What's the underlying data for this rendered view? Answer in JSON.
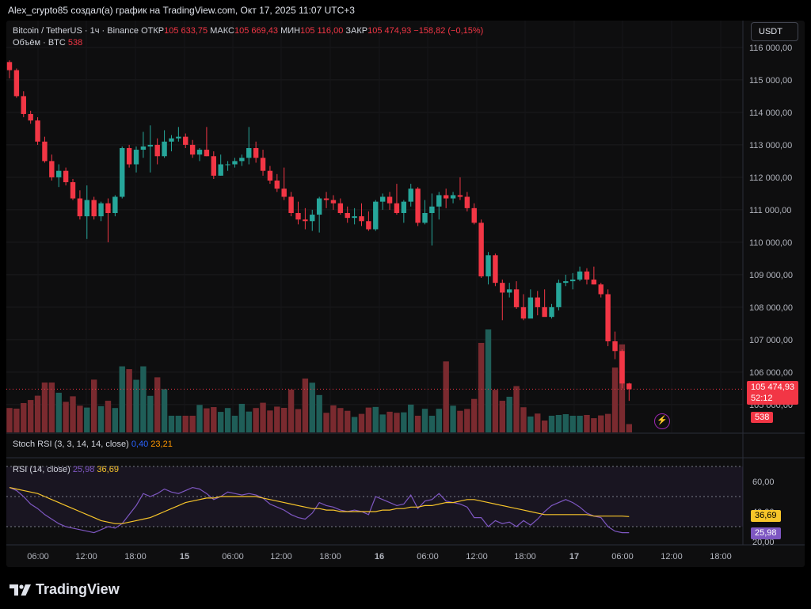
{
  "header": {
    "title": "Alex_crypto85 создал(а) график на TradingView.com, Окт 17, 2025 11:07 UTC+3"
  },
  "legend": {
    "symbol": "Bitcoin / TetherUS · 1ч · Binance",
    "open_label": "ОТКР",
    "open_value": "105 633,75",
    "high_label": "МАКС",
    "high_value": "105 669,43",
    "low_label": "МИН",
    "low_value": "105 116,00",
    "close_label": "ЗАКР",
    "close_value": "105 474,93",
    "change": "−158,82 (−0,15%)",
    "volume_label": "Объём · BTC",
    "volume_value": "538"
  },
  "currency_button": "USDT",
  "price_tags": {
    "last_price": "105 474,93",
    "countdown": "52:12",
    "volume": "538",
    "rsi_value": "25,98",
    "rsi_ma_value": "36,69"
  },
  "stoch_legend": {
    "label": "Stoch RSI (3, 3, 14, 14, close)",
    "k": "0,40",
    "d": "23,21"
  },
  "rsi_legend": {
    "label": "RSI (14, close)",
    "rsi": "25,98",
    "ma": "36,69"
  },
  "footer": {
    "brand": "TradingView"
  },
  "colors": {
    "up": "#26a69a",
    "down": "#f23645",
    "rsi": "#7e57c2",
    "rsi_ma": "#f7c52a",
    "background": "#0e0e0f"
  },
  "chart_data": [
    {
      "type": "candlestick",
      "title": "Bitcoin / TetherUS · 1ч · Binance",
      "ylim": [
        104900,
        116200
      ],
      "y_ticks": [
        "116 000,00",
        "115 000,00",
        "114 000,00",
        "113 000,00",
        "112 000,00",
        "111 000,00",
        "110 000,00",
        "109 000,00",
        "108 000,00",
        "107 000,00",
        "106 000,00",
        "105 000,00"
      ],
      "x_ticks": [
        "06:00",
        "12:00",
        "18:00",
        "15",
        "06:00",
        "12:00",
        "18:00",
        "16",
        "06:00",
        "12:00",
        "18:00",
        "17",
        "06:00",
        "12:00",
        "18:00"
      ],
      "candles_ohlc": [
        [
          115550,
          115600,
          115050,
          115300
        ],
        [
          115300,
          115350,
          114450,
          114500
        ],
        [
          114500,
          114650,
          113850,
          113950
        ],
        [
          113950,
          114050,
          113650,
          113750
        ],
        [
          113750,
          113850,
          113000,
          113100
        ],
        [
          113100,
          113250,
          112450,
          112500
        ],
        [
          112500,
          112700,
          111900,
          112000
        ],
        [
          112000,
          112400,
          111700,
          112200
        ],
        [
          112200,
          112300,
          111750,
          111850
        ],
        [
          111850,
          111950,
          111300,
          111350
        ],
        [
          111350,
          111600,
          110700,
          110800
        ],
        [
          110800,
          111750,
          110100,
          111300
        ],
        [
          111300,
          111400,
          110700,
          110800
        ],
        [
          110800,
          111250,
          110650,
          111200
        ],
        [
          111200,
          111350,
          110000,
          110900
        ],
        [
          110900,
          111450,
          110800,
          111400
        ],
        [
          111400,
          112950,
          111350,
          112900
        ],
        [
          112900,
          113000,
          112300,
          112400
        ],
        [
          112400,
          112950,
          112150,
          112850
        ],
        [
          112850,
          113400,
          112600,
          112950
        ],
        [
          112950,
          113600,
          112150,
          113000
        ],
        [
          113000,
          113200,
          112400,
          112650
        ],
        [
          112650,
          113450,
          112600,
          113100
        ],
        [
          113100,
          113300,
          112800,
          113200
        ],
        [
          113200,
          113550,
          113100,
          113250
        ],
        [
          113250,
          113350,
          112900,
          113000
        ],
        [
          113000,
          113150,
          112600,
          112700
        ],
        [
          112700,
          112900,
          112500,
          112850
        ],
        [
          112850,
          113550,
          112650,
          112650
        ],
        [
          112650,
          112800,
          111950,
          112050
        ],
        [
          112050,
          112700,
          112050,
          112400
        ],
        [
          112400,
          112500,
          112200,
          112400
        ],
        [
          112400,
          112600,
          112300,
          112500
        ],
        [
          112500,
          112700,
          112350,
          112600
        ],
        [
          112600,
          113550,
          112400,
          112900
        ],
        [
          112900,
          113100,
          112450,
          112600
        ],
        [
          112600,
          112850,
          112050,
          112200
        ],
        [
          112200,
          112350,
          111800,
          111900
        ],
        [
          111900,
          112100,
          111550,
          111650
        ],
        [
          111650,
          112300,
          111300,
          111400
        ],
        [
          111400,
          111550,
          110800,
          110900
        ],
        [
          110900,
          111250,
          110550,
          110700
        ],
        [
          110700,
          111050,
          110400,
          110650
        ],
        [
          110650,
          111000,
          110350,
          110850
        ],
        [
          110850,
          111400,
          110300,
          111350
        ],
        [
          111350,
          111550,
          111050,
          111300
        ],
        [
          111300,
          111450,
          111000,
          111200
        ],
        [
          111200,
          111350,
          110850,
          110900
        ],
        [
          110900,
          111100,
          110600,
          110750
        ],
        [
          110750,
          111050,
          110550,
          110800
        ],
        [
          110800,
          111200,
          110500,
          110650
        ],
        [
          110650,
          110950,
          110350,
          110400
        ],
        [
          110400,
          111300,
          110350,
          111250
        ],
        [
          111250,
          111500,
          111000,
          111400
        ],
        [
          111400,
          111550,
          111000,
          111200
        ],
        [
          111200,
          111800,
          110850,
          110900
        ],
        [
          110900,
          111300,
          110600,
          111250
        ],
        [
          111250,
          111800,
          111100,
          111650
        ],
        [
          111650,
          111700,
          110500,
          110600
        ],
        [
          110600,
          111300,
          110550,
          110900
        ],
        [
          110900,
          111500,
          109900,
          111100
        ],
        [
          111100,
          111550,
          110700,
          111450
        ],
        [
          111450,
          111650,
          111050,
          111350
        ],
        [
          111350,
          111550,
          111200,
          111450
        ],
        [
          111450,
          112000,
          111300,
          111400
        ],
        [
          111400,
          111550,
          110950,
          111050
        ],
        [
          111050,
          111200,
          110550,
          110600
        ],
        [
          110600,
          110700,
          108900,
          108950
        ],
        [
          108950,
          109700,
          108700,
          109600
        ],
        [
          109600,
          109650,
          108650,
          108750
        ],
        [
          108750,
          108850,
          107600,
          108450
        ],
        [
          108450,
          108750,
          108300,
          108550
        ],
        [
          108550,
          108800,
          107950,
          108000
        ],
        [
          108000,
          108400,
          107600,
          107650
        ],
        [
          107650,
          108550,
          107750,
          108300
        ],
        [
          108300,
          108500,
          107750,
          108000
        ],
        [
          108000,
          108550,
          107750,
          107700
        ],
        [
          107700,
          108100,
          107650,
          108000
        ],
        [
          108000,
          108850,
          107900,
          108750
        ],
        [
          108750,
          109000,
          108650,
          108800
        ],
        [
          108800,
          109050,
          108550,
          108850
        ],
        [
          108850,
          109250,
          108800,
          109100
        ],
        [
          109100,
          109200,
          108700,
          108850
        ],
        [
          108850,
          109250,
          108700,
          108700
        ],
        [
          108700,
          108750,
          108300,
          108400
        ],
        [
          108400,
          108550,
          106800,
          106950
        ],
        [
          106950,
          107250,
          106400,
          106650
        ],
        [
          106650,
          106700,
          105500,
          105650
        ],
        [
          105650,
          105670,
          105116,
          105475
        ]
      ]
    },
    {
      "type": "bar",
      "title": "Объём · BTC",
      "values": [
        1580,
        1540,
        1900,
        2100,
        2380,
        3230,
        3230,
        2570,
        1980,
        2340,
        1730,
        1610,
        3420,
        1700,
        2050,
        1580,
        4280,
        4100,
        3410,
        4280,
        2370,
        3570,
        2800,
        1080,
        1080,
        1080,
        1080,
        1780,
        1560,
        1640,
        1330,
        1580,
        1080,
        1850,
        1350,
        1580,
        1920,
        1420,
        1670,
        1590,
        2770,
        1510,
        3490,
        3220,
        2420,
        1270,
        1750,
        1580,
        1400,
        1000,
        1200,
        1610,
        1650,
        1160,
        1340,
        1270,
        1300,
        1800,
        1080,
        1530,
        1080,
        1530,
        4600,
        1730,
        1400,
        1520,
        2170,
        5800,
        6670,
        2760,
        2050,
        2310,
        3000,
        1630,
        1030,
        1220,
        770,
        1080,
        1130,
        1180,
        1080,
        1080,
        1130,
        920,
        1100,
        1200,
        4200,
        5700,
        538
      ],
      "up_flags": "computed_from_candles"
    },
    {
      "type": "line",
      "title": "RSI (14, close)",
      "ylim": [
        15,
        70
      ],
      "y_ticks": [
        "60,00",
        "40,00",
        "20,00"
      ],
      "series": [
        {
          "name": "RSI",
          "values": [
            56,
            54,
            50,
            45,
            42,
            38,
            35,
            32,
            30,
            29,
            28,
            27,
            26,
            28,
            30,
            29,
            32,
            38,
            44,
            52,
            50,
            52,
            55,
            53,
            52,
            54,
            56,
            55,
            52,
            48,
            50,
            53,
            52,
            51,
            52,
            51,
            49,
            45,
            43,
            41,
            38,
            36,
            35,
            39,
            46,
            44,
            43,
            41,
            40,
            41,
            40,
            38,
            50,
            48,
            46,
            44,
            45,
            51,
            42,
            47,
            48,
            52,
            47,
            46,
            45,
            43,
            36,
            36,
            30,
            34,
            32,
            33,
            30,
            34,
            31,
            35,
            40,
            44,
            46,
            48,
            46,
            43,
            39,
            37,
            36,
            30,
            27,
            26,
            26
          ]
        },
        {
          "name": "MA",
          "values": [
            56,
            55,
            54,
            53,
            52,
            50,
            48,
            46,
            44,
            42,
            40,
            38,
            36,
            34,
            33,
            32,
            32,
            33,
            34,
            35,
            36,
            38,
            40,
            42,
            44,
            46,
            47,
            48,
            49,
            49,
            50,
            50,
            50,
            50,
            50,
            50,
            49,
            48,
            47,
            46,
            45,
            44,
            43,
            42,
            42,
            41,
            41,
            40,
            40,
            40,
            40,
            40,
            40,
            41,
            41,
            42,
            42,
            43,
            43,
            44,
            44,
            45,
            46,
            46,
            47,
            48,
            48,
            47,
            46,
            45,
            44,
            43,
            42,
            41,
            40,
            39,
            38,
            38,
            38,
            38,
            38,
            38,
            38,
            37,
            37,
            37,
            37,
            37,
            36.69
          ]
        }
      ]
    }
  ]
}
